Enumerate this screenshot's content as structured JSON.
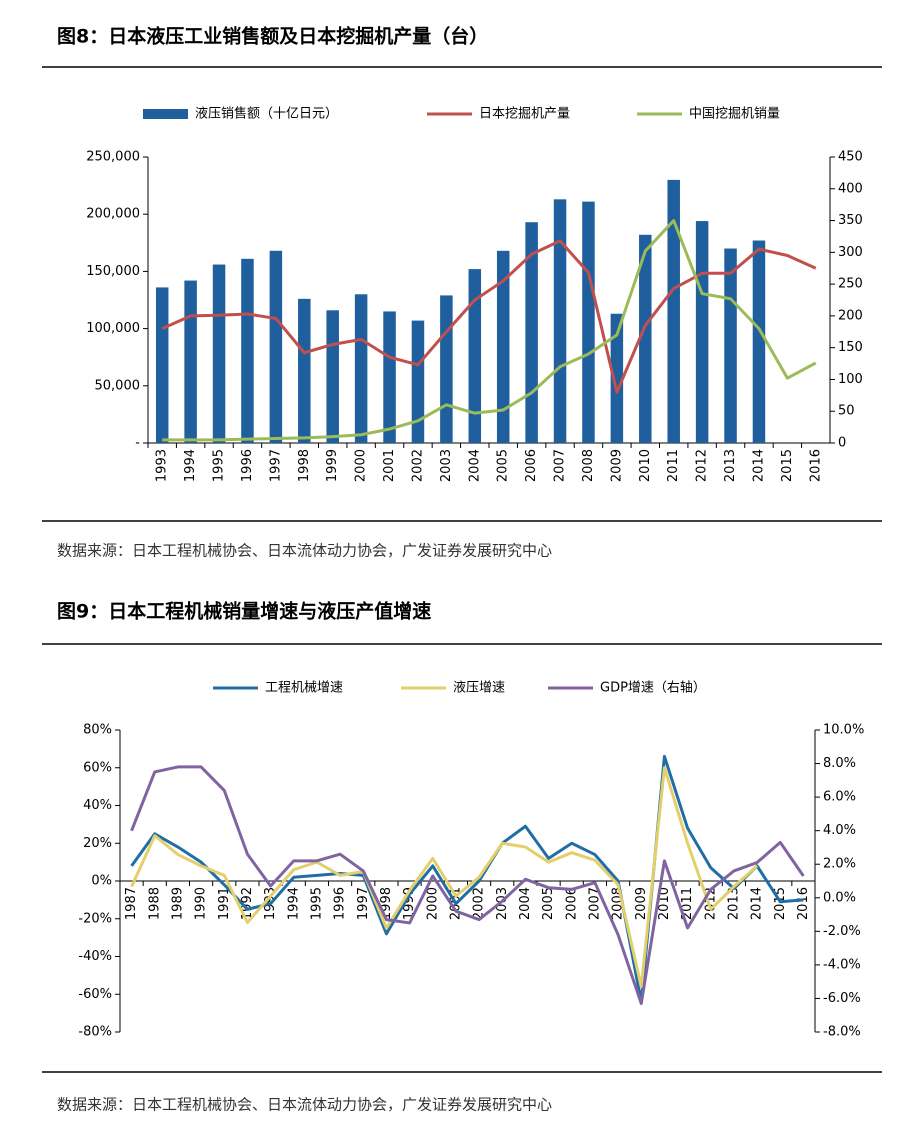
{
  "chart_data": [
    {
      "type": "combo",
      "title": "图8：日本液压工业销售额及日本挖掘机产量（台）",
      "source": "数据来源：日本工程机械协会、日本流体动力协会，广发证券发展研究中心",
      "categories": [
        "1993",
        "1994",
        "1995",
        "1996",
        "1997",
        "1998",
        "1999",
        "2000",
        "2001",
        "2002",
        "2003",
        "2004",
        "2005",
        "2006",
        "2007",
        "2008",
        "2009",
        "2010",
        "2011",
        "2012",
        "2013",
        "2014",
        "2015",
        "2016"
      ],
      "series": [
        {
          "name": "液压销售额（十亿日元）",
          "type": "bar",
          "color": "#1f5f9e",
          "values": [
            136000,
            142000,
            156000,
            161000,
            168000,
            126000,
            116000,
            130000,
            115000,
            107000,
            129000,
            152000,
            168000,
            193000,
            213000,
            211000,
            113000,
            182000,
            230000,
            194000,
            170000,
            177000,
            null,
            null
          ]
        },
        {
          "name": "日本挖掘机产量",
          "type": "line",
          "axis": "y2",
          "color": "#c0504d",
          "values": [
            180,
            200,
            201,
            203,
            196,
            142,
            155,
            163,
            135,
            123,
            175,
            225,
            255,
            297,
            318,
            268,
            80,
            185,
            243,
            267,
            267,
            305,
            295,
            275
          ]
        },
        {
          "name": "中国挖掘机销量",
          "type": "line",
          "axis": "y2",
          "color": "#9bbb59",
          "values": [
            5,
            5,
            5,
            6,
            7,
            8,
            10,
            13,
            22,
            35,
            60,
            47,
            52,
            79,
            120,
            140,
            170,
            302,
            350,
            235,
            227,
            180,
            102,
            126
          ]
        }
      ],
      "ylim": [
        0,
        250000
      ],
      "yticks": [
        {
          "value": 0,
          "label": "-"
        },
        {
          "value": 50000,
          "label": "50,000"
        },
        {
          "value": 100000,
          "label": "100,000"
        },
        {
          "value": 150000,
          "label": "150,000"
        },
        {
          "value": 200000,
          "label": "200,000"
        },
        {
          "value": 250000,
          "label": "250,000"
        }
      ],
      "y2lim": [
        0,
        450
      ],
      "y2ticks": [
        0,
        50,
        100,
        150,
        200,
        250,
        300,
        350,
        400,
        450
      ],
      "legend": "top"
    },
    {
      "type": "line",
      "title": "图9：日本工程机械销量增速与液压产值增速",
      "source": "数据来源：日本工程机械协会、日本流体动力协会，广发证券发展研究中心",
      "categories": [
        "1987",
        "1988",
        "1989",
        "1990",
        "1991",
        "1992",
        "1993",
        "1994",
        "1995",
        "1996",
        "1997",
        "1998",
        "1999",
        "2000",
        "2001",
        "2002",
        "2003",
        "2004",
        "2005",
        "2006",
        "2007",
        "2008",
        "2009",
        "2010",
        "2011",
        "2012",
        "2013",
        "2014",
        "2015",
        "2016"
      ],
      "series": [
        {
          "name": "工程机械增速",
          "color": "#1f6fa6",
          "values": [
            8,
            25,
            18,
            10,
            -2,
            -15,
            -12,
            2,
            3,
            4,
            3,
            -28,
            -7,
            8,
            -12,
            0,
            20,
            29,
            12,
            20,
            14,
            0,
            -64,
            66,
            28,
            7,
            -4,
            8,
            -11,
            -10
          ]
        },
        {
          "name": "液压增速",
          "color": "#e3cf6b",
          "values": [
            -3,
            24,
            14,
            8,
            3,
            -22,
            -8,
            6,
            10,
            3,
            5,
            -25,
            -5,
            12,
            -8,
            2,
            20,
            18,
            10,
            15,
            11,
            -2,
            -56,
            60,
            20,
            -15,
            -3,
            8,
            null,
            null
          ]
        },
        {
          "name": "GDP增速（右轴）",
          "axis": "y2",
          "color": "#8064a2",
          "values": [
            4.0,
            7.5,
            7.8,
            7.8,
            6.4,
            2.6,
            0.7,
            2.2,
            2.2,
            2.6,
            1.6,
            -1.3,
            -1.5,
            1.3,
            -0.8,
            -1.3,
            -0.2,
            1.1,
            0.6,
            0.5,
            0.9,
            -2.2,
            -6.3,
            2.2,
            -1.8,
            0.5,
            1.6,
            2.1,
            3.3,
            1.3
          ]
        }
      ],
      "ylim": [
        -80,
        80
      ],
      "yticks": [
        {
          "value": -80,
          "label": "-80%"
        },
        {
          "value": -60,
          "label": "-60%"
        },
        {
          "value": -40,
          "label": "-40%"
        },
        {
          "value": -20,
          "label": "-20%"
        },
        {
          "value": 0,
          "label": "0%"
        },
        {
          "value": 20,
          "label": "20%"
        },
        {
          "value": 40,
          "label": "40%"
        },
        {
          "value": 60,
          "label": "60%"
        },
        {
          "value": 80,
          "label": "80%"
        }
      ],
      "y2lim": [
        -8,
        10
      ],
      "y2ticks": [
        {
          "value": -8,
          "label": "-8.0%"
        },
        {
          "value": -6,
          "label": "-6.0%"
        },
        {
          "value": -4,
          "label": "-4.0%"
        },
        {
          "value": -2,
          "label": "-2.0%"
        },
        {
          "value": 0,
          "label": "0.0%"
        },
        {
          "value": 2,
          "label": "2.0%"
        },
        {
          "value": 4,
          "label": "4.0%"
        },
        {
          "value": 6,
          "label": "6.0%"
        },
        {
          "value": 8,
          "label": "8.0%"
        },
        {
          "value": 10,
          "label": "10.0%"
        }
      ],
      "legend": "top"
    }
  ]
}
